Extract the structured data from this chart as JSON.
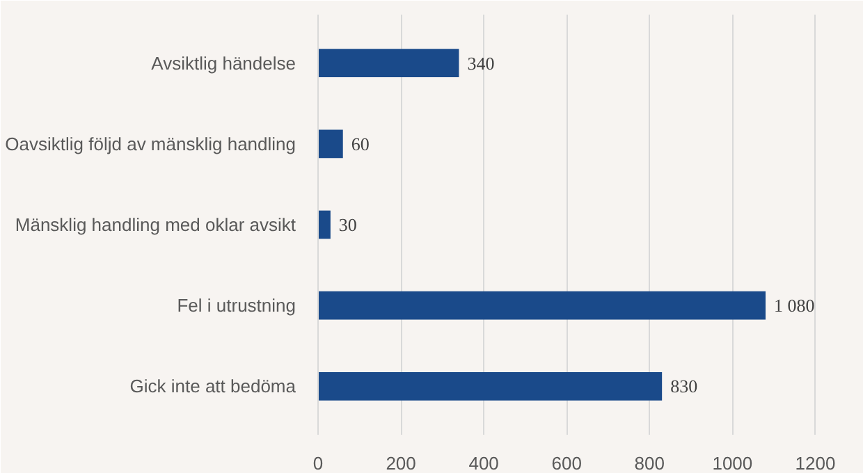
{
  "chart_data": {
    "type": "bar",
    "orientation": "horizontal",
    "categories": [
      "Avsiktlig händelse",
      "Oavsiktlig följd av mänsklig handling",
      "Mänsklig handling med oklar avsikt",
      "Fel i utrustning",
      "Gick inte att bedöma"
    ],
    "values": [
      340,
      60,
      30,
      1080,
      830
    ],
    "value_labels": [
      "340",
      "60",
      "30",
      "1 080",
      "830"
    ],
    "color": "#1a4a8a",
    "xlim": [
      0,
      1300
    ],
    "xticks": [
      0,
      200,
      400,
      600,
      800,
      1000,
      1200
    ],
    "grid": "x"
  }
}
